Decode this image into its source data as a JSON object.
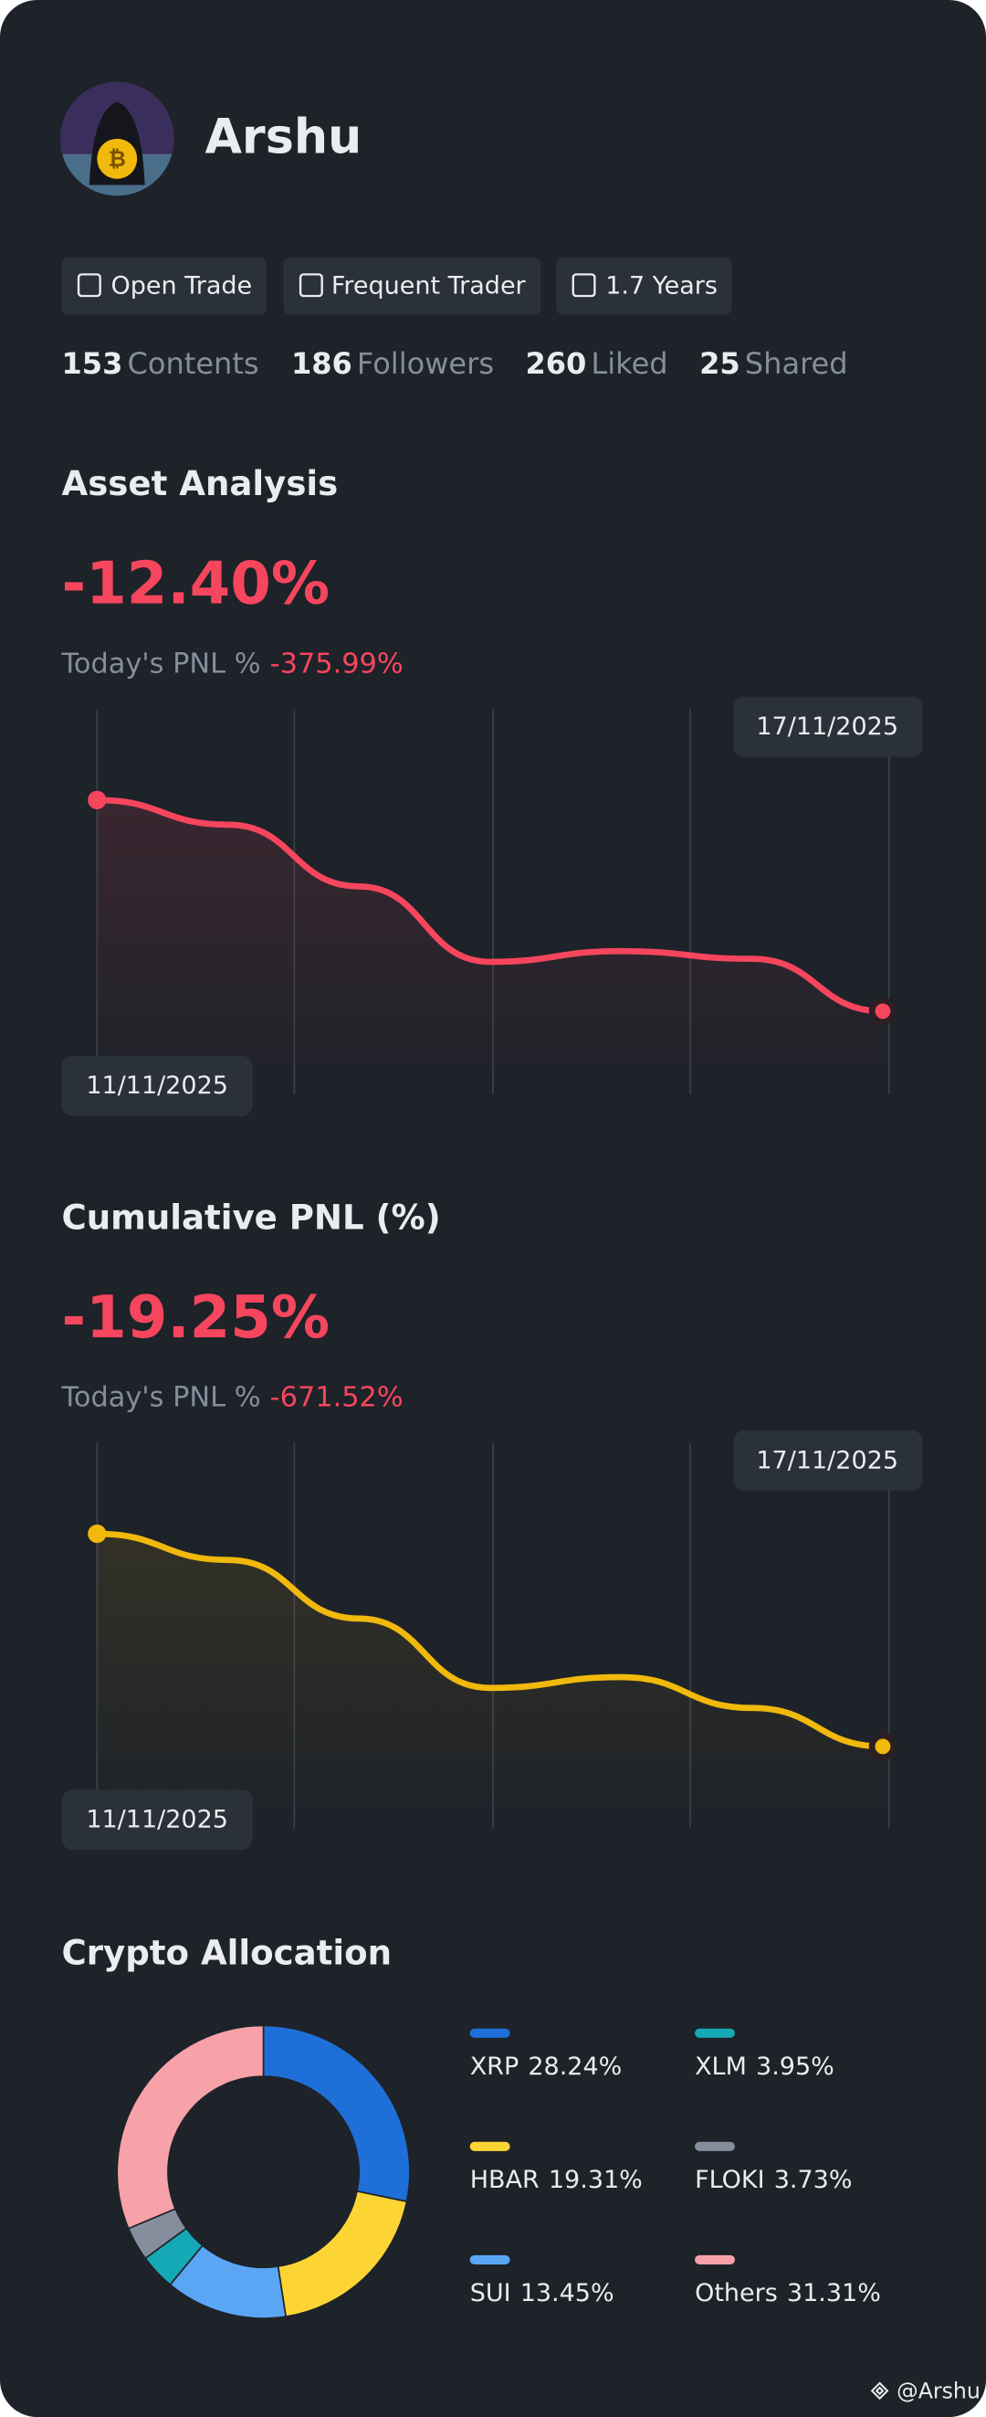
{
  "profile": {
    "name": "Arshu",
    "badges": [
      "Open Trade",
      "Frequent Trader",
      "1.7 Years"
    ],
    "stats": [
      {
        "value": 153,
        "label": "Contents"
      },
      {
        "value": 186,
        "label": "Followers"
      },
      {
        "value": 260,
        "label": "Liked"
      },
      {
        "value": 25,
        "label": "Shared"
      }
    ]
  },
  "asset_analysis": {
    "title": "Asset Analysis",
    "pnl": "-12.40%",
    "today_label": "Today's PNL %",
    "today_value": "-375.99%",
    "chart_data": {
      "type": "line",
      "categories": [
        "11/11/2025",
        null,
        null,
        null,
        null,
        null,
        "17/11/2025"
      ],
      "values": [
        76.4,
        70,
        54,
        34.4,
        37.2,
        35.2,
        21.6
      ],
      "ylim": [
        0,
        100
      ],
      "color": "#f6465d"
    }
  },
  "cumulative_pnl": {
    "title": "Cumulative PNL (%)",
    "pnl": "-19.25%",
    "today_label": "Today's PNL %",
    "today_value": "-671.52%",
    "chart_data": {
      "type": "line",
      "categories": [
        "11/11/2025",
        null,
        null,
        null,
        null,
        null,
        "17/11/2025"
      ],
      "values": [
        76.4,
        69.6,
        54.4,
        36.4,
        39.2,
        31.2,
        21.2
      ],
      "ylim": [
        0,
        100
      ],
      "color": "#f0b90b"
    }
  },
  "crypto_allocation": {
    "title": "Crypto Allocation",
    "chart_data": {
      "type": "donut",
      "categories": [
        "XRP",
        "HBAR",
        "SUI",
        "XLM",
        "FLOKI",
        "Others"
      ],
      "values": [
        28.24,
        19.31,
        13.45,
        3.95,
        3.73,
        31.31
      ],
      "value_labels": [
        "28.24%",
        "19.31%",
        "13.45%",
        "3.95%",
        "3.73%",
        "31.31%"
      ],
      "colors": [
        "#1f6fd8",
        "#fcd535",
        "#5aa6f5",
        "#14a9b5",
        "#848e9c",
        "#f7a1a8"
      ]
    }
  },
  "footer": {
    "watermark": "@Arshu"
  }
}
